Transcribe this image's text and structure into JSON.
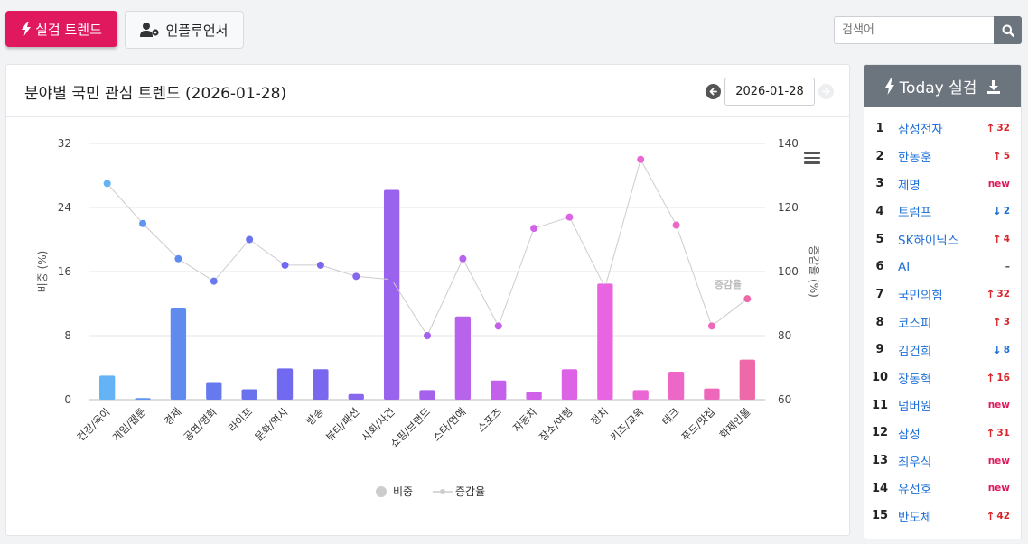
{
  "top_buttons": {
    "realtime": "실검 트렌드",
    "influencer": "인플루언서"
  },
  "search": {
    "placeholder": "검색어"
  },
  "panel": {
    "title": "분야별 국민 관심 트렌드 (2026-01-28)",
    "date": "2026-01-28"
  },
  "sidebar": {
    "title": "Today 실검",
    "items": [
      {
        "rank": "1",
        "keyword": "삼성전자",
        "dir": "up",
        "change": "32"
      },
      {
        "rank": "2",
        "keyword": "한동훈",
        "dir": "up",
        "change": "5"
      },
      {
        "rank": "3",
        "keyword": "제명",
        "dir": "new",
        "change": "new"
      },
      {
        "rank": "4",
        "keyword": "트럼프",
        "dir": "down",
        "change": "2"
      },
      {
        "rank": "5",
        "keyword": "SK하이닉스",
        "dir": "up",
        "change": "4"
      },
      {
        "rank": "6",
        "keyword": "AI",
        "dir": "same",
        "change": "–"
      },
      {
        "rank": "7",
        "keyword": "국민의힘",
        "dir": "up",
        "change": "32"
      },
      {
        "rank": "8",
        "keyword": "코스피",
        "dir": "up",
        "change": "3"
      },
      {
        "rank": "9",
        "keyword": "김건희",
        "dir": "down",
        "change": "8"
      },
      {
        "rank": "10",
        "keyword": "장동혁",
        "dir": "up",
        "change": "16"
      },
      {
        "rank": "11",
        "keyword": "넘버원",
        "dir": "new",
        "change": "new"
      },
      {
        "rank": "12",
        "keyword": "삼성",
        "dir": "up",
        "change": "31"
      },
      {
        "rank": "13",
        "keyword": "최우식",
        "dir": "new",
        "change": "new"
      },
      {
        "rank": "14",
        "keyword": "유선호",
        "dir": "new",
        "change": "new"
      },
      {
        "rank": "15",
        "keyword": "반도체",
        "dir": "up",
        "change": "42"
      }
    ]
  },
  "chart_data": {
    "type": "bar",
    "categories": [
      "건강/육아",
      "게임/웹툰",
      "경제",
      "공연/영화",
      "라이프",
      "문화/역사",
      "방송",
      "뷰티/패션",
      "사회/사건",
      "쇼핑/브랜드",
      "스타/연예",
      "스포츠",
      "자동차",
      "장소/여행",
      "정치",
      "키즈/교육",
      "테크",
      "푸드/맛집",
      "화제인물"
    ],
    "series": [
      {
        "name": "비중",
        "type": "bar",
        "axis": "left",
        "values": [
          3.0,
          0.2,
          11.5,
          2.2,
          1.3,
          3.9,
          3.8,
          0.7,
          26.2,
          1.2,
          10.4,
          2.4,
          1.0,
          3.8,
          14.5,
          1.2,
          3.5,
          1.4,
          5.0
        ],
        "colors": [
          "#64b3f4",
          "#5f94f0",
          "#5f8bee",
          "#6679ee",
          "#6a72ee",
          "#7169ef",
          "#7968ef",
          "#8667ee",
          "#9a63ed",
          "#a561ec",
          "#b863ec",
          "#c461ea",
          "#d061e8",
          "#dd63e6",
          "#e864e0",
          "#ea66d4",
          "#ec67c6",
          "#ed68ba",
          "#ed69a8"
        ]
      },
      {
        "name": "증감율",
        "type": "line",
        "axis": "right",
        "color": "#cccccc",
        "values": [
          127.5,
          115,
          104,
          97,
          110,
          102,
          102,
          98.5,
          97.5,
          80,
          104,
          83,
          113.5,
          117,
          95,
          135,
          114.5,
          83,
          91.5
        ]
      }
    ],
    "ylabel": "비중 (%)",
    "y2label": "증감율 (%)",
    "ylim": [
      0,
      32
    ],
    "y2lim": [
      60,
      140
    ],
    "yticks": [
      0,
      8,
      16,
      24,
      32
    ],
    "y2ticks": [
      60,
      80,
      100,
      120,
      140
    ],
    "annotation": "증감율",
    "legend": [
      "비중",
      "증감율"
    ],
    "legend_position": "bottom",
    "grid": true
  }
}
